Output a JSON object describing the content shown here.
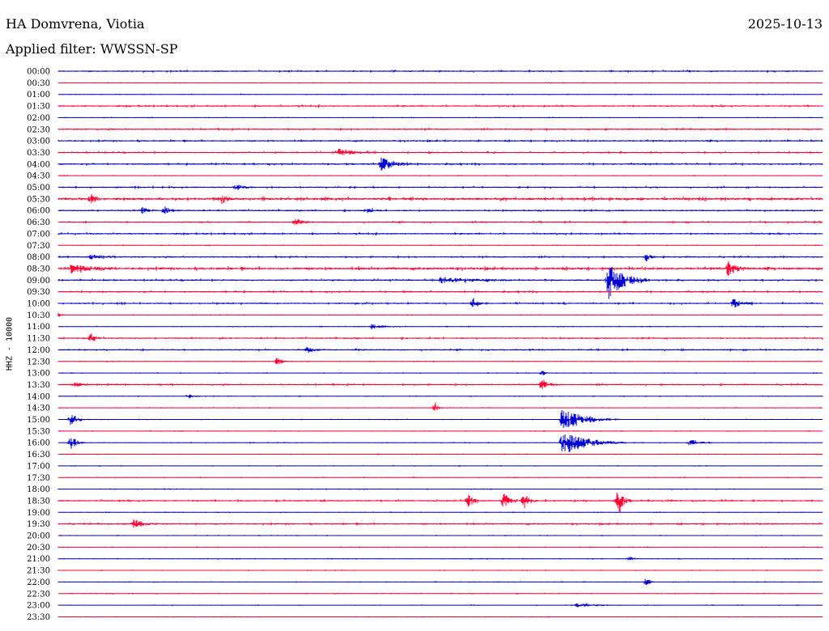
{
  "header": {
    "station": "HA Domvrena, Viotia",
    "date": "2025-10-13",
    "filter": "Applied filter: WWSSN-SP"
  },
  "colors": {
    "odd_row": "#0000cc",
    "even_row": "#ff0033",
    "background": "#ffffff"
  },
  "chart_data": {
    "type": "line",
    "title": "HA Domvrena, Viotia",
    "subtitle": "Applied filter: WWSSN-SP",
    "ylabel": "HHZ - 10000",
    "row_labels": [
      "00:00",
      "00:30",
      "01:00",
      "01:30",
      "02:00",
      "02:30",
      "03:00",
      "03:30",
      "04:00",
      "04:30",
      "05:00",
      "05:30",
      "06:00",
      "06:30",
      "07:00",
      "07:30",
      "08:00",
      "08:30",
      "09:00",
      "09:30",
      "10:00",
      "10:30",
      "11:00",
      "11:30",
      "12:00",
      "12:30",
      "13:00",
      "13:30",
      "14:00",
      "14:30",
      "15:00",
      "15:30",
      "16:00",
      "16:30",
      "17:00",
      "17:30",
      "18:00",
      "18:30",
      "19:00",
      "19:30",
      "20:00",
      "20:30",
      "21:00",
      "21:30",
      "22:00",
      "22:30",
      "23:00",
      "23:30"
    ],
    "row_minutes": 30,
    "row_colors": [
      "#0000cc",
      "#ff0033"
    ],
    "noise_level": [
      2,
      1,
      1,
      2,
      1,
      2,
      2,
      2,
      2,
      1,
      2,
      3,
      2,
      2,
      2,
      1,
      2,
      3,
      2,
      2,
      2,
      1,
      1,
      2,
      2,
      1,
      1,
      2,
      1,
      1,
      1,
      1,
      1,
      1,
      1,
      1,
      1,
      2,
      1,
      2,
      1,
      1,
      1,
      1,
      1,
      1,
      1,
      1
    ],
    "events": [
      {
        "row": 8,
        "minute": 12.7,
        "amplitude": 9,
        "duration": 1.2
      },
      {
        "row": 7,
        "minute": 11.0,
        "amplitude": 4,
        "duration": 1.6
      },
      {
        "row": 11,
        "minute": 1.3,
        "amplitude": 5,
        "duration": 0.6
      },
      {
        "row": 11,
        "minute": 6.4,
        "amplitude": 6,
        "duration": 0.6
      },
      {
        "row": 10,
        "minute": 7.0,
        "amplitude": 4,
        "duration": 0.7
      },
      {
        "row": 12,
        "minute": 3.3,
        "amplitude": 4,
        "duration": 0.6
      },
      {
        "row": 12,
        "minute": 4.2,
        "amplitude": 4,
        "duration": 0.6
      },
      {
        "row": 12,
        "minute": 12.1,
        "amplitude": 3,
        "duration": 0.6
      },
      {
        "row": 13,
        "minute": 9.3,
        "amplitude": 3,
        "duration": 0.8
      },
      {
        "row": 16,
        "minute": 1.3,
        "amplitude": 3,
        "duration": 1.0
      },
      {
        "row": 16,
        "minute": 23.1,
        "amplitude": 5,
        "duration": 0.4
      },
      {
        "row": 17,
        "minute": 0.5,
        "amplitude": 5,
        "duration": 2.0
      },
      {
        "row": 17,
        "minute": 26.3,
        "amplitude": 9,
        "duration": 0.8
      },
      {
        "row": 18,
        "minute": 21.6,
        "amplitude": 24,
        "duration": 1.6
      },
      {
        "row": 18,
        "minute": 15.0,
        "amplitude": 4,
        "duration": 3.0
      },
      {
        "row": 20,
        "minute": 16.3,
        "amplitude": 6,
        "duration": 0.4
      },
      {
        "row": 20,
        "minute": 26.5,
        "amplitude": 7,
        "duration": 0.8
      },
      {
        "row": 21,
        "minute": 0.0,
        "amplitude": 3,
        "duration": 0.3
      },
      {
        "row": 22,
        "minute": 12.3,
        "amplitude": 3,
        "duration": 1.0
      },
      {
        "row": 23,
        "minute": 1.3,
        "amplitude": 5,
        "duration": 0.5
      },
      {
        "row": 24,
        "minute": 9.8,
        "amplitude": 3,
        "duration": 0.8
      },
      {
        "row": 25,
        "minute": 8.6,
        "amplitude": 5,
        "duration": 0.5
      },
      {
        "row": 26,
        "minute": 19.0,
        "amplitude": 4,
        "duration": 0.3
      },
      {
        "row": 27,
        "minute": 0.6,
        "amplitude": 4,
        "duration": 0.6
      },
      {
        "row": 27,
        "minute": 19.0,
        "amplitude": 6,
        "duration": 0.6
      },
      {
        "row": 28,
        "minute": 5.1,
        "amplitude": 3,
        "duration": 0.6
      },
      {
        "row": 29,
        "minute": 14.8,
        "amplitude": 6,
        "duration": 0.3
      },
      {
        "row": 30,
        "minute": 0.5,
        "amplitude": 7,
        "duration": 0.8
      },
      {
        "row": 30,
        "minute": 19.8,
        "amplitude": 14,
        "duration": 2.2
      },
      {
        "row": 32,
        "minute": 0.5,
        "amplitude": 8,
        "duration": 0.6
      },
      {
        "row": 32,
        "minute": 19.8,
        "amplitude": 16,
        "duration": 2.5
      },
      {
        "row": 32,
        "minute": 24.8,
        "amplitude": 4,
        "duration": 1.0
      },
      {
        "row": 37,
        "minute": 16.1,
        "amplitude": 9,
        "duration": 0.5
      },
      {
        "row": 37,
        "minute": 17.5,
        "amplitude": 10,
        "duration": 0.6
      },
      {
        "row": 37,
        "minute": 18.3,
        "amplitude": 9,
        "duration": 0.6
      },
      {
        "row": 37,
        "minute": 22.0,
        "amplitude": 18,
        "duration": 0.5
      },
      {
        "row": 39,
        "minute": 3.0,
        "amplitude": 5,
        "duration": 1.0
      },
      {
        "row": 42,
        "minute": 22.4,
        "amplitude": 3,
        "duration": 0.4
      },
      {
        "row": 44,
        "minute": 23.1,
        "amplitude": 6,
        "duration": 0.3
      },
      {
        "row": 46,
        "minute": 20.4,
        "amplitude": 3,
        "duration": 1.8
      }
    ]
  }
}
